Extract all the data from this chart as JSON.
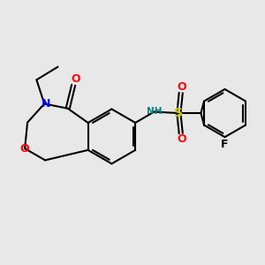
{
  "background_color": "#e8e8e8",
  "bond_color": "#000000",
  "N_color": "#0000ff",
  "O_color": "#ff0000",
  "S_color": "#cccc00",
  "F_color": "#000000",
  "NH_color": "#008080",
  "linewidth": 1.5,
  "figsize": [
    3.0,
    3.0
  ],
  "dpi": 100,
  "xlim": [
    0,
    10
  ],
  "ylim": [
    0,
    10
  ]
}
